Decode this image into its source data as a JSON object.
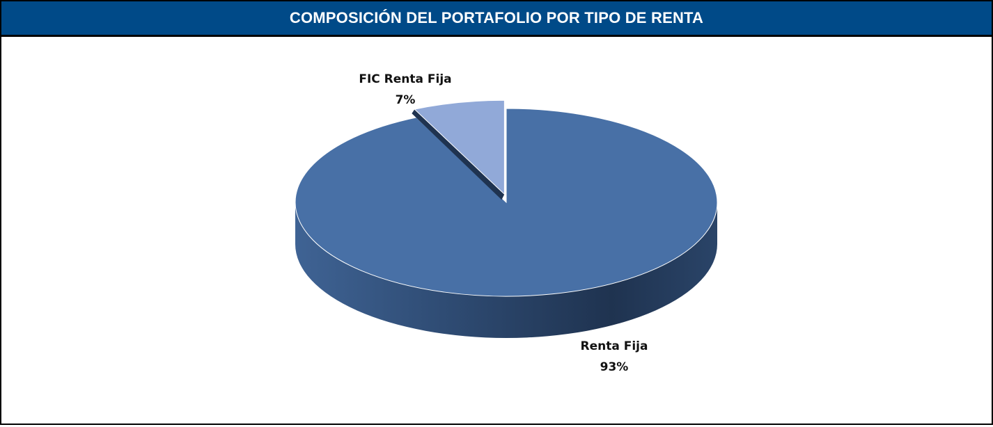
{
  "chart_data": {
    "type": "pie",
    "title": "COMPOSICIÓN DEL PORTAFOLIO POR TIPO DE RENTA",
    "categories": [
      "Renta Fija",
      "FIC Renta Fija"
    ],
    "values": [
      93,
      7
    ],
    "value_labels": [
      "93%",
      "7%"
    ],
    "colors": [
      "#4870a6",
      "#91a9d8"
    ]
  }
}
